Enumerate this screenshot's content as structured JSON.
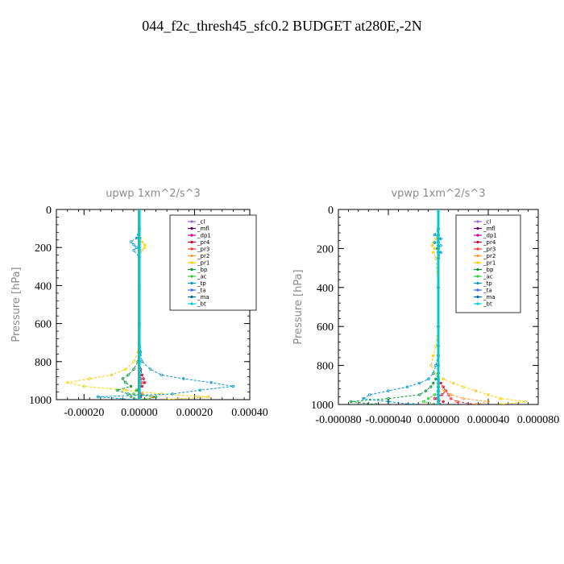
{
  "figure_title": "044_f2c_thresh45_sfc0.2  BUDGET at280E,-2N",
  "chart_data": [
    {
      "type": "line",
      "title": "upwp   1xm^2/s^3",
      "ylabel": "Pressure [hPa]",
      "xlabel": "",
      "ylim": [
        1000,
        0
      ],
      "xlim": [
        -0.0003,
        0.0004
      ],
      "x_tick_labels": [
        "-0.00020",
        "0.00000",
        "0.00020",
        "0.00040"
      ],
      "x_tick_values": [
        -0.0002,
        0.0,
        0.0002,
        0.0004
      ],
      "y_tick_labels": [
        "0",
        "200",
        "400",
        "600",
        "800",
        "1000"
      ],
      "y_tick_values": [
        0,
        200,
        400,
        600,
        800,
        1000
      ],
      "legend_position": "top-right",
      "pressure": [
        0,
        100,
        150,
        170,
        185,
        200,
        215,
        250,
        400,
        600,
        750,
        800,
        840,
        870,
        890,
        910,
        930,
        950,
        970,
        985,
        1000
      ],
      "series": [
        {
          "name": "_cl",
          "color": "#9966cc",
          "values": [
            0,
            0,
            0,
            0,
            0,
            0,
            0,
            0,
            0,
            0,
            0,
            0,
            0,
            0,
            0,
            0,
            0,
            0,
            0,
            0,
            0
          ]
        },
        {
          "name": "_mfl",
          "color": "#660066",
          "values": [
            0,
            0,
            0,
            0,
            0,
            0,
            0,
            0,
            0,
            0,
            0,
            0,
            0,
            0,
            0,
            0,
            0,
            0,
            0,
            0,
            0
          ]
        },
        {
          "name": "_dp1",
          "color": "#cc0099",
          "values": [
            0,
            0,
            0,
            0,
            0,
            0,
            0,
            0,
            0,
            0,
            0,
            0,
            0,
            0,
            0,
            0,
            0,
            0,
            0,
            0,
            0
          ]
        },
        {
          "name": "_pr4",
          "color": "#cc0033",
          "values": [
            0,
            0,
            0,
            0,
            0,
            0,
            0,
            0,
            0,
            0,
            0,
            0,
            5e-06,
            1e-05,
            1.5e-05,
            2e-05,
            1e-05,
            -1e-05,
            1e-05,
            5e-06,
            0
          ]
        },
        {
          "name": "_pr3",
          "color": "#ff3333",
          "values": [
            0,
            0,
            0,
            0,
            0,
            0,
            0,
            0,
            0,
            0,
            0,
            0,
            0,
            5e-06,
            5e-06,
            1e-05,
            5e-06,
            -5e-06,
            5e-06,
            0,
            0
          ]
        },
        {
          "name": "_pr2",
          "color": "#ff9933",
          "values": [
            0,
            0,
            0,
            0,
            0,
            0,
            0,
            0,
            0,
            0,
            0,
            0,
            0,
            0,
            0,
            0,
            0,
            0,
            1e-05,
            5e-05,
            3e-05
          ]
        },
        {
          "name": "_pr1",
          "color": "#ffcc00",
          "values": [
            0,
            0,
            5e-06,
            1e-05,
            2e-05,
            2e-05,
            1e-05,
            0,
            0,
            0,
            -5e-06,
            -2e-05,
            -5e-05,
            -0.0001,
            -0.00018,
            -0.00026,
            -0.0002,
            -5e-05,
            8e-05,
            0.00025,
            0.0001
          ]
        },
        {
          "name": "_bp",
          "color": "#009933",
          "values": [
            0,
            0,
            0,
            0,
            0,
            0,
            0,
            0,
            0,
            0,
            0,
            -5e-06,
            -2e-05,
            -4e-05,
            -6e-05,
            -5e-05,
            -3e-05,
            -8e-05,
            -4e-05,
            6e-05,
            2e-05
          ]
        },
        {
          "name": "_ac",
          "color": "#33cc33",
          "values": [
            0,
            0,
            0,
            0,
            0,
            0,
            0,
            0,
            0,
            0,
            0,
            0,
            0,
            0,
            0,
            0,
            0,
            -1e-05,
            -2e-05,
            -3e-05,
            0
          ]
        },
        {
          "name": "_tp",
          "color": "#0099cc",
          "values": [
            0,
            0,
            -1e-05,
            -3e-05,
            -2e-05,
            -1e-05,
            -2e-05,
            0,
            0,
            0,
            5e-06,
            1e-05,
            4e-05,
            8e-05,
            0.00016,
            0.00026,
            0.00034,
            0.00022,
            0.00012,
            -0.00015,
            -2e-05
          ]
        },
        {
          "name": "_ta",
          "color": "#3366ff",
          "values": [
            0,
            0,
            0,
            0,
            0,
            0,
            0,
            0,
            0,
            0,
            0,
            0,
            0,
            0,
            0,
            0,
            0,
            0,
            0,
            0,
            0
          ]
        },
        {
          "name": "_ma",
          "color": "#006699",
          "values": [
            0,
            0,
            0,
            0,
            0,
            0,
            0,
            0,
            0,
            0,
            0,
            0,
            0,
            0,
            0,
            0,
            0,
            0,
            0,
            0,
            0
          ]
        },
        {
          "name": "_bt",
          "color": "#00cccc",
          "values": [
            0,
            0,
            0,
            0,
            0,
            0,
            0,
            0,
            0,
            0,
            0,
            0,
            0,
            0,
            0,
            0,
            0,
            0,
            0,
            0,
            0
          ]
        }
      ]
    },
    {
      "type": "line",
      "title": "vpwp   1xm^2/s^3",
      "ylabel": "Pressure [hPa]",
      "xlabel": "",
      "ylim": [
        1000,
        0
      ],
      "xlim": [
        -8e-05,
        8e-05
      ],
      "x_tick_labels": [
        "-0.000080",
        "-0.000040",
        "0.000000",
        "0.000040",
        "0.000080"
      ],
      "x_tick_values": [
        -8e-05,
        -4e-05,
        0.0,
        4e-05,
        8e-05
      ],
      "y_tick_labels": [
        "0",
        "200",
        "400",
        "600",
        "800",
        "1000"
      ],
      "y_tick_values": [
        0,
        200,
        400,
        600,
        800,
        1000
      ],
      "legend_position": "top-right",
      "pressure": [
        0,
        100,
        130,
        150,
        170,
        185,
        200,
        220,
        250,
        400,
        600,
        700,
        750,
        800,
        840,
        870,
        890,
        910,
        930,
        950,
        970,
        985,
        1000
      ],
      "series": [
        {
          "name": "_cl",
          "color": "#9966cc",
          "values": [
            0,
            0,
            0,
            0,
            0,
            0,
            0,
            0,
            0,
            0,
            0,
            0,
            0,
            0,
            0,
            0,
            0,
            0,
            0,
            0,
            0,
            0,
            0
          ]
        },
        {
          "name": "_mfl",
          "color": "#660066",
          "values": [
            0,
            0,
            0,
            0,
            0,
            0,
            0,
            0,
            0,
            0,
            0,
            0,
            0,
            0,
            0,
            0,
            0,
            0,
            0,
            0,
            0,
            0,
            0
          ]
        },
        {
          "name": "_dp1",
          "color": "#cc0099",
          "values": [
            0,
            0,
            0,
            0,
            0,
            0,
            0,
            0,
            0,
            0,
            0,
            0,
            0,
            0,
            0,
            0,
            0,
            0,
            0,
            0,
            0,
            0,
            0
          ]
        },
        {
          "name": "_pr4",
          "color": "#cc0033",
          "values": [
            0,
            0,
            0,
            0,
            0,
            0,
            0,
            0,
            0,
            0,
            0,
            0,
            0,
            0,
            0,
            0,
            2e-06,
            4e-06,
            6e-06,
            3e-06,
            -3e-06,
            4e-06,
            0
          ]
        },
        {
          "name": "_pr3",
          "color": "#ff3333",
          "values": [
            0,
            0,
            0,
            0,
            0,
            0,
            0,
            0,
            0,
            0,
            0,
            0,
            0,
            0,
            0,
            0,
            0,
            4e-06,
            6e-06,
            8e-06,
            1e-05,
            1.5e-05,
            3e-05
          ]
        },
        {
          "name": "_pr2",
          "color": "#ff9933",
          "values": [
            0,
            0,
            0,
            0,
            0,
            0,
            0,
            0,
            0,
            0,
            0,
            0,
            0,
            0,
            0,
            0,
            0,
            0,
            5e-06,
            1e-05,
            2e-05,
            4e-05,
            3e-05
          ]
        },
        {
          "name": "_pr1",
          "color": "#ffcc00",
          "values": [
            0,
            0,
            0,
            -2e-06,
            -4e-06,
            -5e-06,
            -3e-06,
            -4e-06,
            -2e-06,
            0,
            0,
            -2e-06,
            -4e-06,
            -6e-06,
            -3e-06,
            4e-06,
            1.2e-05,
            2e-05,
            3e-05,
            4e-05,
            5e-05,
            7e-05,
            5e-05
          ]
        },
        {
          "name": "_bp",
          "color": "#009933",
          "values": [
            0,
            0,
            0,
            0,
            0,
            0,
            0,
            0,
            0,
            0,
            0,
            0,
            0,
            0,
            0,
            -2e-06,
            -4e-06,
            -6e-06,
            -1e-05,
            -1.5e-05,
            -4e-05,
            -7e-05,
            -5e-05
          ]
        },
        {
          "name": "_ac",
          "color": "#33cc33",
          "values": [
            0,
            0,
            0,
            0,
            0,
            0,
            0,
            0,
            0,
            0,
            0,
            0,
            0,
            0,
            0,
            0,
            0,
            0,
            0,
            -3e-06,
            -8e-06,
            -1.2e-05,
            0
          ]
        },
        {
          "name": "_tp",
          "color": "#0099cc",
          "values": [
            0,
            0,
            -3e-06,
            2e-06,
            -3e-06,
            2e-06,
            -1e-06,
            2e-06,
            0,
            0,
            0,
            0,
            0,
            -2e-06,
            -4e-06,
            -8e-06,
            -1.5e-05,
            -2.5e-05,
            -4e-05,
            -5.5e-05,
            -6e-05,
            -4e-05,
            -2e-05
          ]
        },
        {
          "name": "_ta",
          "color": "#3366ff",
          "values": [
            0,
            0,
            0,
            0,
            0,
            0,
            0,
            0,
            0,
            0,
            0,
            0,
            0,
            0,
            0,
            0,
            0,
            0,
            0,
            0,
            0,
            0,
            0
          ]
        },
        {
          "name": "_ma",
          "color": "#006699",
          "values": [
            0,
            0,
            0,
            0,
            0,
            0,
            0,
            0,
            0,
            0,
            0,
            0,
            0,
            0,
            0,
            0,
            0,
            0,
            0,
            0,
            0,
            0,
            0
          ]
        },
        {
          "name": "_bt",
          "color": "#00cccc",
          "values": [
            0,
            0,
            0,
            0,
            0,
            0,
            0,
            0,
            0,
            0,
            0,
            0,
            0,
            0,
            0,
            0,
            0,
            0,
            0,
            0,
            0,
            0,
            0
          ]
        }
      ]
    }
  ]
}
